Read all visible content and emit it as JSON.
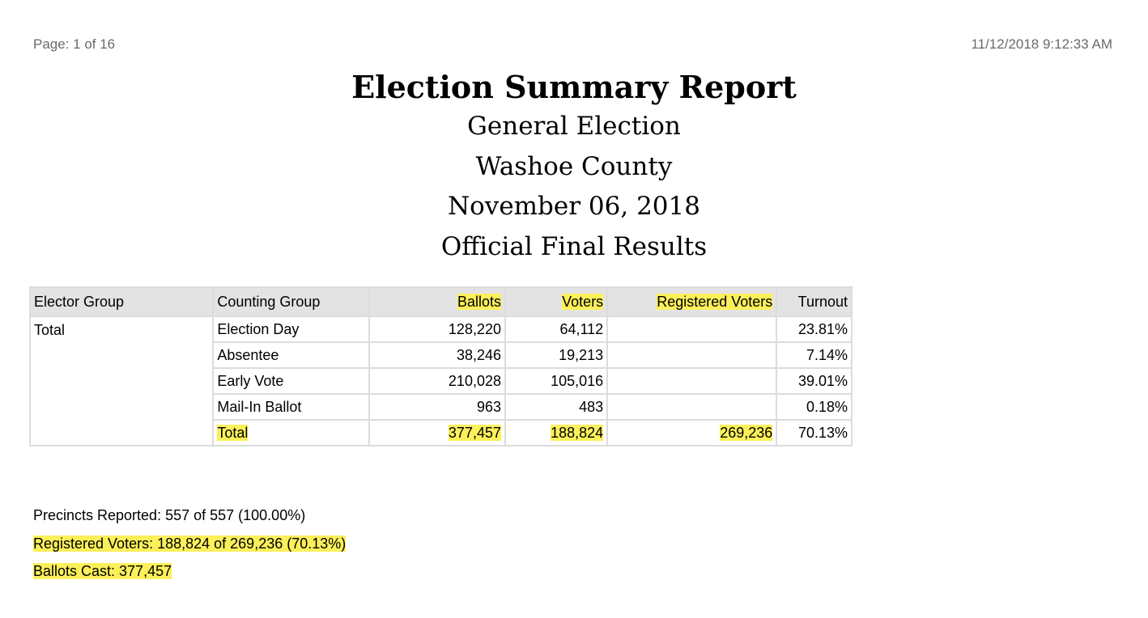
{
  "header": {
    "page_label": "Page: 1 of 16",
    "timestamp": "11/12/2018 9:12:33 AM"
  },
  "report": {
    "title": "Election Summary Report",
    "subtitle_lines": [
      "General Election",
      "Washoe County",
      "November 06, 2018",
      "Official Final Results"
    ]
  },
  "table": {
    "columns": [
      "Elector Group",
      "Counting Group",
      "Ballots",
      "Voters",
      "Registered Voters",
      "Turnout"
    ],
    "highlighted_columns": [
      "Ballots",
      "Voters",
      "Registered Voters"
    ],
    "elector_group": "Total",
    "rows": [
      {
        "counting_group": "Election Day",
        "ballots": "128,220",
        "voters": "64,112",
        "registered_voters": "",
        "turnout": "23.81%"
      },
      {
        "counting_group": "Absentee",
        "ballots": "38,246",
        "voters": "19,213",
        "registered_voters": "",
        "turnout": "7.14%"
      },
      {
        "counting_group": "Early Vote",
        "ballots": "210,028",
        "voters": "105,016",
        "registered_voters": "",
        "turnout": "39.01%"
      },
      {
        "counting_group": "Mail-In Ballot",
        "ballots": "963",
        "voters": "483",
        "registered_voters": "",
        "turnout": "0.18%"
      },
      {
        "counting_group": "Total",
        "ballots": "377,457",
        "voters": "188,824",
        "registered_voters": "269,236",
        "turnout": "70.13%"
      }
    ]
  },
  "footer": {
    "precincts": "Precincts Reported: 557 of 557 (100.00%)",
    "registered": "Registered Voters: 188,824 of 269,236 (70.13%)",
    "ballots_cast": "Ballots Cast: 377,457"
  },
  "colors": {
    "highlight": "#fbf05a",
    "header_bg": "#e3e3e3",
    "border": "#dcdcdc",
    "muted_text": "#6a6a6a"
  }
}
